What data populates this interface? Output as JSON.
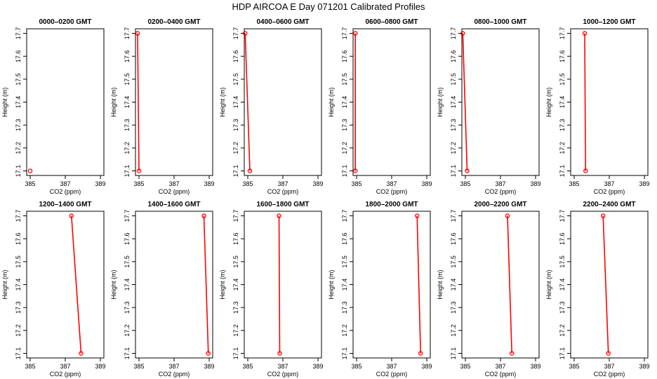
{
  "page_title": "HDP AIRCOA E  Day 071201  Calibrated Profiles",
  "colors": {
    "series": "#ff0000",
    "axis": "#000000",
    "background": "#ffffff"
  },
  "chart_data": [
    {
      "type": "line",
      "title": "0000–0200 GMT",
      "xlabel": "CO2 (ppm)",
      "ylabel": "Height (m)",
      "xlim": [
        384.8,
        389.2
      ],
      "ylim": [
        17.08,
        17.72
      ],
      "xticks": [
        "385",
        "387",
        "389"
      ],
      "yticks": [
        "17.1",
        "17.2",
        "17.3",
        "17.4",
        "17.5",
        "17.6",
        "17.7"
      ],
      "series": [
        {
          "points": [
            {
              "x": 385.0,
              "y": 17.1
            }
          ]
        }
      ]
    },
    {
      "type": "line",
      "title": "0200–0400 GMT",
      "xlabel": "CO2 (ppm)",
      "ylabel": "Height (m)",
      "xlim": [
        384.8,
        389.2
      ],
      "ylim": [
        17.08,
        17.72
      ],
      "xticks": [
        "385",
        "387",
        "389"
      ],
      "yticks": [
        "17.1",
        "17.2",
        "17.3",
        "17.4",
        "17.5",
        "17.6",
        "17.7"
      ],
      "series": [
        {
          "points": [
            {
              "x": 385.0,
              "y": 17.1
            },
            {
              "x": 384.92,
              "y": 17.7
            }
          ]
        }
      ]
    },
    {
      "type": "line",
      "title": "0400–0600 GMT",
      "xlabel": "CO2 (ppm)",
      "ylabel": "Height (m)",
      "xlim": [
        384.8,
        389.2
      ],
      "ylim": [
        17.08,
        17.72
      ],
      "xticks": [
        "385",
        "387",
        "389"
      ],
      "yticks": [
        "17.1",
        "17.2",
        "17.3",
        "17.4",
        "17.5",
        "17.6",
        "17.7"
      ],
      "series": [
        {
          "points": [
            {
              "x": 385.12,
              "y": 17.1
            },
            {
              "x": 384.85,
              "y": 17.7
            }
          ]
        }
      ]
    },
    {
      "type": "line",
      "title": "0600–0800 GMT",
      "xlabel": "CO2 (ppm)",
      "ylabel": "Height (m)",
      "xlim": [
        384.8,
        389.2
      ],
      "ylim": [
        17.08,
        17.72
      ],
      "xticks": [
        "385",
        "387",
        "389"
      ],
      "yticks": [
        "17.1",
        "17.2",
        "17.3",
        "17.4",
        "17.5",
        "17.6",
        "17.7"
      ],
      "series": [
        {
          "points": [
            {
              "x": 384.93,
              "y": 17.1
            },
            {
              "x": 384.93,
              "y": 17.7
            }
          ]
        }
      ]
    },
    {
      "type": "line",
      "title": "0800–1000 GMT",
      "xlabel": "CO2 (ppm)",
      "ylabel": "Height (m)",
      "xlim": [
        384.8,
        389.2
      ],
      "ylim": [
        17.08,
        17.72
      ],
      "xticks": [
        "385",
        "387",
        "389"
      ],
      "yticks": [
        "17.1",
        "17.2",
        "17.3",
        "17.4",
        "17.5",
        "17.6",
        "17.7"
      ],
      "series": [
        {
          "points": [
            {
              "x": 385.1,
              "y": 17.1
            },
            {
              "x": 384.85,
              "y": 17.7
            }
          ]
        }
      ]
    },
    {
      "type": "line",
      "title": "1000–1200 GMT",
      "xlabel": "CO2 (ppm)",
      "ylabel": "Height (m)",
      "xlim": [
        384.8,
        389.2
      ],
      "ylim": [
        17.08,
        17.72
      ],
      "xticks": [
        "385",
        "387",
        "389"
      ],
      "yticks": [
        "17.1",
        "17.2",
        "17.3",
        "17.4",
        "17.5",
        "17.6",
        "17.7"
      ],
      "series": [
        {
          "points": [
            {
              "x": 385.65,
              "y": 17.1
            },
            {
              "x": 385.6,
              "y": 17.7
            }
          ]
        }
      ]
    },
    {
      "type": "line",
      "title": "1200–1400 GMT",
      "xlabel": "CO2 (ppm)",
      "ylabel": "Height (m)",
      "xlim": [
        384.8,
        389.2
      ],
      "ylim": [
        17.08,
        17.72
      ],
      "xticks": [
        "385",
        "387",
        "389"
      ],
      "yticks": [
        "17.1",
        "17.2",
        "17.3",
        "17.4",
        "17.5",
        "17.6",
        "17.7"
      ],
      "series": [
        {
          "points": [
            {
              "x": 387.9,
              "y": 17.1
            },
            {
              "x": 387.35,
              "y": 17.7
            }
          ]
        }
      ]
    },
    {
      "type": "line",
      "title": "1400–1600 GMT",
      "xlabel": "CO2 (ppm)",
      "ylabel": "Height (m)",
      "xlim": [
        384.8,
        389.2
      ],
      "ylim": [
        17.08,
        17.72
      ],
      "xticks": [
        "385",
        "387",
        "389"
      ],
      "yticks": [
        "17.1",
        "17.2",
        "17.3",
        "17.4",
        "17.5",
        "17.6",
        "17.7"
      ],
      "series": [
        {
          "points": [
            {
              "x": 388.95,
              "y": 17.1
            },
            {
              "x": 388.7,
              "y": 17.7
            }
          ]
        }
      ]
    },
    {
      "type": "line",
      "title": "1600–1800 GMT",
      "xlabel": "CO2 (ppm)",
      "ylabel": "Height (m)",
      "xlim": [
        384.8,
        389.2
      ],
      "ylim": [
        17.08,
        17.72
      ],
      "xticks": [
        "385",
        "387",
        "389"
      ],
      "yticks": [
        "17.1",
        "17.2",
        "17.3",
        "17.4",
        "17.5",
        "17.6",
        "17.7"
      ],
      "series": [
        {
          "points": [
            {
              "x": 386.82,
              "y": 17.1
            },
            {
              "x": 386.78,
              "y": 17.7
            }
          ]
        }
      ]
    },
    {
      "type": "line",
      "title": "1800–2000 GMT",
      "xlabel": "CO2 (ppm)",
      "ylabel": "Height (m)",
      "xlim": [
        384.8,
        389.2
      ],
      "ylim": [
        17.08,
        17.72
      ],
      "xticks": [
        "385",
        "387",
        "389"
      ],
      "yticks": [
        "17.1",
        "17.2",
        "17.3",
        "17.4",
        "17.5",
        "17.6",
        "17.7"
      ],
      "series": [
        {
          "points": [
            {
              "x": 388.65,
              "y": 17.1
            },
            {
              "x": 388.45,
              "y": 17.7
            }
          ]
        }
      ]
    },
    {
      "type": "line",
      "title": "2000–2200 GMT",
      "xlabel": "CO2 (ppm)",
      "ylabel": "Height (m)",
      "xlim": [
        384.8,
        389.2
      ],
      "ylim": [
        17.08,
        17.72
      ],
      "xticks": [
        "385",
        "387",
        "389"
      ],
      "yticks": [
        "17.1",
        "17.2",
        "17.3",
        "17.4",
        "17.5",
        "17.6",
        "17.7"
      ],
      "series": [
        {
          "points": [
            {
              "x": 387.65,
              "y": 17.1
            },
            {
              "x": 387.4,
              "y": 17.7
            }
          ]
        }
      ]
    },
    {
      "type": "line",
      "title": "2200–2400 GMT",
      "xlabel": "CO2 (ppm)",
      "ylabel": "Height (m)",
      "xlim": [
        384.8,
        389.2
      ],
      "ylim": [
        17.08,
        17.72
      ],
      "xticks": [
        "385",
        "387",
        "389"
      ],
      "yticks": [
        "17.1",
        "17.2",
        "17.3",
        "17.4",
        "17.5",
        "17.6",
        "17.7"
      ],
      "series": [
        {
          "points": [
            {
              "x": 386.95,
              "y": 17.1
            },
            {
              "x": 386.65,
              "y": 17.7
            }
          ]
        }
      ]
    }
  ]
}
